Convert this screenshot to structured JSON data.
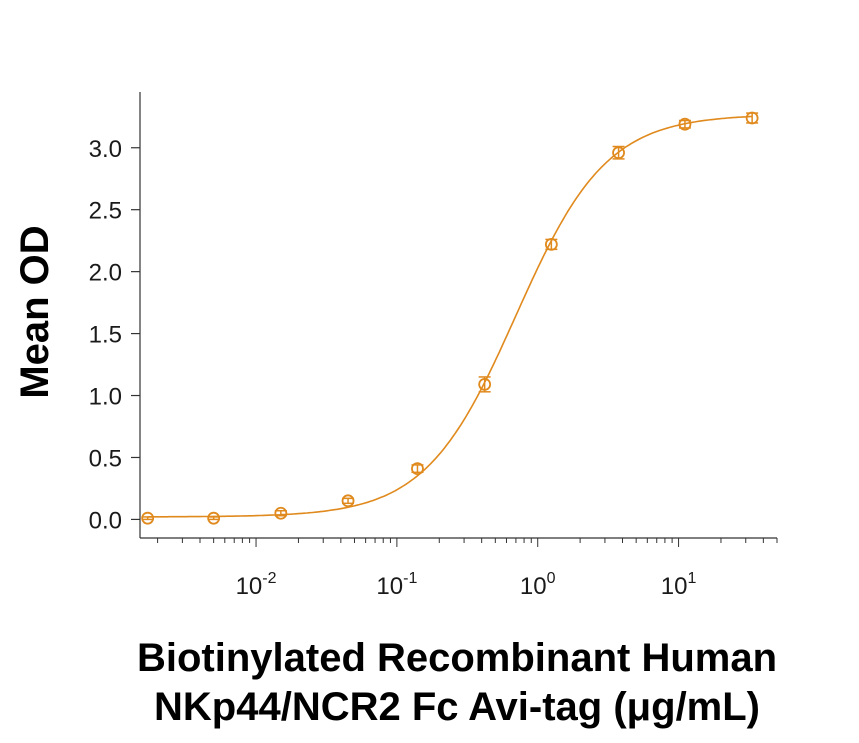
{
  "chart_data": {
    "type": "scatter",
    "title": "",
    "xlabel_lines": [
      "Biotinylated Recombinant Human",
      "NKp44/NCR2 Fc Avi-tag (μg/mL)"
    ],
    "ylabel": "Mean OD",
    "x_scale": "log",
    "xlim": [
      0.0015,
      50
    ],
    "ylim": [
      -0.15,
      3.45
    ],
    "x_ticks": [
      {
        "value": 0.01,
        "base": "10",
        "exp": "-2"
      },
      {
        "value": 0.1,
        "base": "10",
        "exp": "-1"
      },
      {
        "value": 1,
        "base": "10",
        "exp": "0"
      },
      {
        "value": 10,
        "base": "10",
        "exp": "1"
      }
    ],
    "y_ticks": [
      {
        "value": 0.0,
        "label": "0.0"
      },
      {
        "value": 0.5,
        "label": "0.5"
      },
      {
        "value": 1.0,
        "label": "1.0"
      },
      {
        "value": 1.5,
        "label": "1.5"
      },
      {
        "value": 2.0,
        "label": "2.0"
      },
      {
        "value": 2.5,
        "label": "2.5"
      },
      {
        "value": 3.0,
        "label": "3.0"
      }
    ],
    "grid": false,
    "color": "#E08A1E",
    "series": [
      {
        "x": [
          0.0017,
          0.005,
          0.015,
          0.045,
          0.14,
          0.42,
          1.25,
          3.75,
          11.1,
          33.3
        ],
        "y": [
          0.01,
          0.01,
          0.05,
          0.15,
          0.41,
          1.09,
          2.22,
          2.96,
          3.19,
          3.24
        ],
        "err": [
          0.01,
          0.01,
          0.02,
          0.02,
          0.03,
          0.06,
          0.04,
          0.05,
          0.03,
          0.04
        ]
      }
    ],
    "fit_curve": {
      "bottom": 0.02,
      "top": 3.27,
      "ec50": 0.7,
      "hill": 1.35
    }
  }
}
